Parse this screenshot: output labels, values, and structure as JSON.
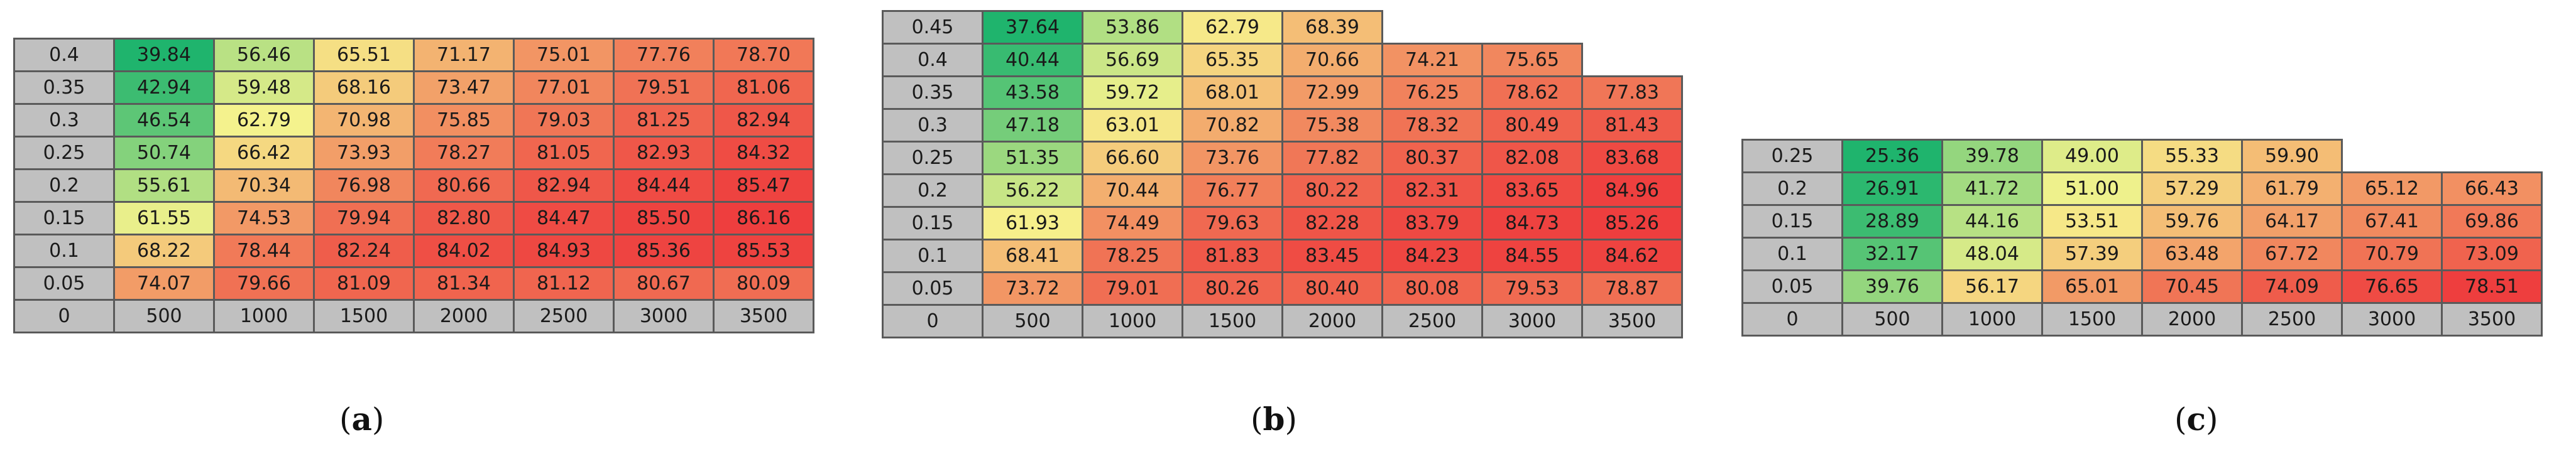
{
  "chart_data": [
    {
      "type": "heatmap",
      "panel": "a",
      "y": [
        "0.4",
        "0.35",
        "0.3",
        "0.25",
        "0.2",
        "0.15",
        "0.1",
        "0.05"
      ],
      "corner": "0",
      "x": [
        "500",
        "1000",
        "1500",
        "2000",
        "2500",
        "3000",
        "3500"
      ],
      "values": [
        [
          "39.84",
          "56.46",
          "65.51",
          "71.17",
          "75.01",
          "77.76",
          "78.70"
        ],
        [
          "42.94",
          "59.48",
          "68.16",
          "73.47",
          "77.01",
          "79.51",
          "81.06"
        ],
        [
          "46.54",
          "62.79",
          "70.98",
          "75.85",
          "79.03",
          "81.25",
          "82.94"
        ],
        [
          "50.74",
          "66.42",
          "73.93",
          "78.27",
          "81.05",
          "82.93",
          "84.32"
        ],
        [
          "55.61",
          "70.34",
          "76.98",
          "80.66",
          "82.94",
          "84.44",
          "85.47"
        ],
        [
          "61.55",
          "74.53",
          "79.94",
          "82.80",
          "84.47",
          "85.50",
          "86.16"
        ],
        [
          "68.22",
          "78.44",
          "82.24",
          "84.02",
          "84.93",
          "85.36",
          "85.53"
        ],
        [
          "74.07",
          "79.66",
          "81.09",
          "81.34",
          "81.12",
          "80.67",
          "80.09"
        ]
      ]
    },
    {
      "type": "heatmap",
      "panel": "b",
      "y": [
        "0.45",
        "0.4",
        "0.35",
        "0.3",
        "0.25",
        "0.2",
        "0.15",
        "0.1",
        "0.05"
      ],
      "corner": "0",
      "x": [
        "500",
        "1000",
        "1500",
        "2000",
        "2500",
        "3000",
        "3500"
      ],
      "values": [
        [
          "37.64",
          "53.86",
          "62.79",
          "68.39",
          null,
          null,
          null
        ],
        [
          "40.44",
          "56.69",
          "65.35",
          "70.66",
          "74.21",
          "75.65",
          null
        ],
        [
          "43.58",
          "59.72",
          "68.01",
          "72.99",
          "76.25",
          "78.62",
          "77.83"
        ],
        [
          "47.18",
          "63.01",
          "70.82",
          "75.38",
          "78.32",
          "80.49",
          "81.43"
        ],
        [
          "51.35",
          "66.60",
          "73.76",
          "77.82",
          "80.37",
          "82.08",
          "83.68"
        ],
        [
          "56.22",
          "70.44",
          "76.77",
          "80.22",
          "82.31",
          "83.65",
          "84.96"
        ],
        [
          "61.93",
          "74.49",
          "79.63",
          "82.28",
          "83.79",
          "84.73",
          "85.26"
        ],
        [
          "68.41",
          "78.25",
          "81.83",
          "83.45",
          "84.23",
          "84.55",
          "84.62"
        ],
        [
          "73.72",
          "79.01",
          "80.26",
          "80.40",
          "80.08",
          "79.53",
          "78.87"
        ]
      ]
    },
    {
      "type": "heatmap",
      "panel": "c",
      "y": [
        "0.25",
        "0.2",
        "0.15",
        "0.1",
        "0.05"
      ],
      "corner": "0",
      "x": [
        "500",
        "1000",
        "1500",
        "2000",
        "2500",
        "3000",
        "3500"
      ],
      "values": [
        [
          "25.36",
          "39.78",
          "49.00",
          "55.33",
          "59.90",
          null,
          null
        ],
        [
          "26.91",
          "41.72",
          "51.00",
          "57.29",
          "61.79",
          "65.12",
          "66.43"
        ],
        [
          "28.89",
          "44.16",
          "53.51",
          "59.76",
          "64.17",
          "67.41",
          "69.86"
        ],
        [
          "32.17",
          "48.04",
          "57.39",
          "63.48",
          "67.72",
          "70.79",
          "73.09"
        ],
        [
          "39.76",
          "56.17",
          "65.01",
          "70.45",
          "74.09",
          "76.65",
          "78.51"
        ]
      ]
    }
  ],
  "captions": {
    "a": "a",
    "b": "b",
    "c": "c"
  },
  "colors": {
    "low": "#1fb46d",
    "mid": "#f6f38d",
    "high": "#ee3e3e",
    "label_cell": "#c0c0c0",
    "border": "#5a5a5a"
  }
}
